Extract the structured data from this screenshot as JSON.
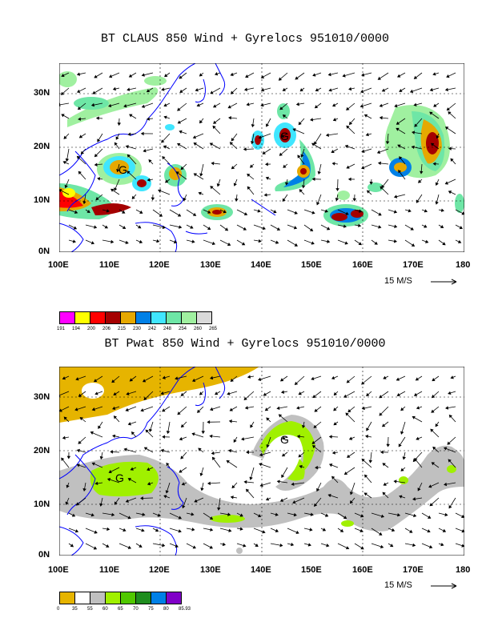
{
  "panels": [
    {
      "title": "BT CLAUS 850 Wind + Gyrelocs 951010/0000",
      "lat_labels": [
        "30N",
        "20N",
        "10N",
        "0N"
      ],
      "lon_labels": [
        "100E",
        "110E",
        "120E",
        "130E",
        "140E",
        "150E",
        "160E",
        "170E",
        "180"
      ],
      "vector_scale": "15 M/S",
      "colorbar_colors": [
        "#ff00ff",
        "#ffff00",
        "#ff0000",
        "#a50000",
        "#e6a800",
        "#0080e6",
        "#40e6ff",
        "#6ee6a6",
        "#a0f0a0",
        "#d9d9d9"
      ],
      "colorbar_labels": [
        "191",
        "194",
        "200",
        "206",
        "215",
        "230",
        "242",
        "248",
        "254",
        "260",
        "265"
      ],
      "gyre_marks": [
        "G",
        "G"
      ]
    },
    {
      "title": "BT Pwat 850 Wind + Gyrelocs 951010/0000",
      "lat_labels": [
        "30N",
        "20N",
        "10N",
        "0N"
      ],
      "lon_labels": [
        "100E",
        "110E",
        "120E",
        "130E",
        "140E",
        "150E",
        "160E",
        "170E",
        "180"
      ],
      "vector_scale": "15 M/S",
      "colorbar_colors": [
        "#e6b400",
        "#ffffff",
        "#c0c0c0",
        "#a0f000",
        "#50c800",
        "#1e8c1e",
        "#0080e6",
        "#8000c8"
      ],
      "colorbar_labels": [
        "0",
        "35",
        "55",
        "60",
        "65",
        "70",
        "75",
        "80",
        "85.93"
      ],
      "gyre_marks": [
        "G",
        "G"
      ]
    }
  ]
}
